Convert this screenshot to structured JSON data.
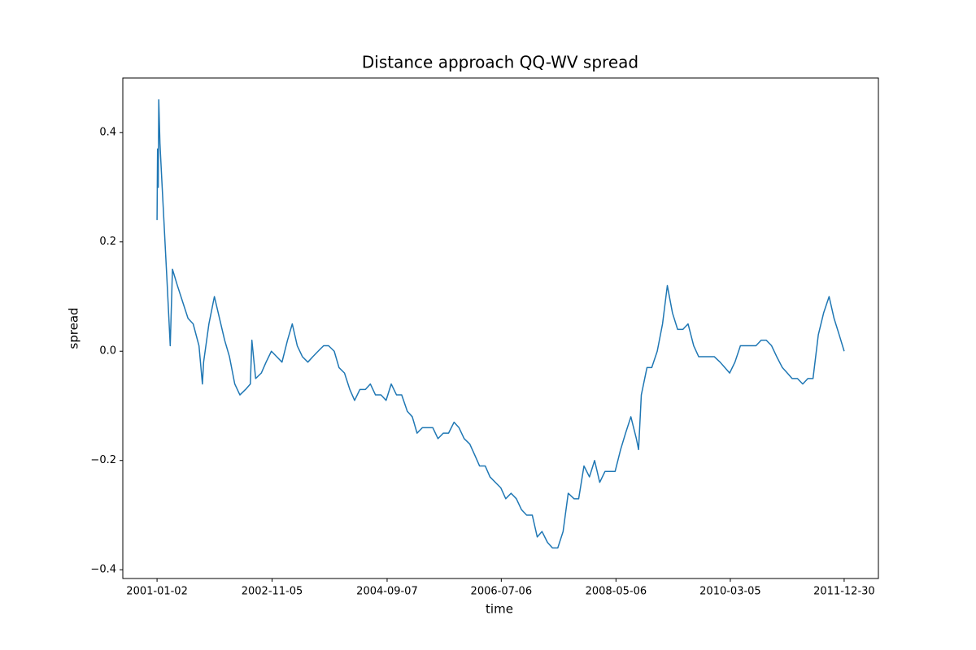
{
  "chart_data": {
    "type": "line",
    "title": "Distance approach QQ-WV spread",
    "x_label": "time",
    "y_label": "spread",
    "color": "#1f77b4",
    "x": [
      "2001-01-02",
      "2001-01-05",
      "2001-01-09",
      "2001-01-12",
      "2001-01-19",
      "2001-02-01",
      "2001-03-01",
      "2001-03-20",
      "2001-04-02",
      "2001-05-01",
      "2001-06-01",
      "2001-07-02",
      "2001-08-01",
      "2001-09-04",
      "2001-09-24",
      "2001-10-01",
      "2001-11-01",
      "2001-12-03",
      "2002-01-02",
      "2002-02-01",
      "2002-03-01",
      "2002-04-01",
      "2002-05-01",
      "2002-06-03",
      "2002-07-01",
      "2002-07-10",
      "2002-08-01",
      "2002-09-03",
      "2002-10-01",
      "2002-11-01",
      "2002-12-02",
      "2003-01-02",
      "2003-02-03",
      "2003-03-03",
      "2003-04-01",
      "2003-05-01",
      "2003-06-02",
      "2003-07-01",
      "2003-08-01",
      "2003-09-02",
      "2003-10-01",
      "2003-11-03",
      "2003-12-01",
      "2004-01-02",
      "2004-02-02",
      "2004-03-01",
      "2004-04-01",
      "2004-05-03",
      "2004-06-01",
      "2004-07-01",
      "2004-08-02",
      "2004-09-01",
      "2004-10-01",
      "2004-11-01",
      "2004-12-01",
      "2005-01-03",
      "2005-02-01",
      "2005-03-01",
      "2005-04-01",
      "2005-05-02",
      "2005-06-01",
      "2005-07-01",
      "2005-08-01",
      "2005-09-01",
      "2005-10-03",
      "2005-11-01",
      "2005-12-01",
      "2006-01-03",
      "2006-02-01",
      "2006-03-01",
      "2006-04-03",
      "2006-05-01",
      "2006-06-01",
      "2006-07-03",
      "2006-08-01",
      "2006-09-01",
      "2006-10-02",
      "2006-11-01",
      "2006-12-01",
      "2007-01-03",
      "2007-02-01",
      "2007-03-01",
      "2007-04-02",
      "2007-05-01",
      "2007-06-01",
      "2007-07-02",
      "2007-08-01",
      "2007-09-04",
      "2007-10-01",
      "2007-11-01",
      "2007-12-03",
      "2008-01-02",
      "2008-02-01",
      "2008-03-03",
      "2008-04-01",
      "2008-05-01",
      "2008-06-02",
      "2008-07-01",
      "2008-08-01",
      "2008-09-02",
      "2008-09-15",
      "2008-10-01",
      "2008-11-03",
      "2008-12-01",
      "2009-01-02",
      "2009-02-02",
      "2009-03-02",
      "2009-04-01",
      "2009-05-01",
      "2009-06-01",
      "2009-07-01",
      "2009-08-03",
      "2009-09-01",
      "2009-10-01",
      "2009-11-02",
      "2009-12-01",
      "2010-01-04",
      "2010-02-01",
      "2010-03-01",
      "2010-04-01",
      "2010-05-03",
      "2010-06-01",
      "2010-07-01",
      "2010-08-02",
      "2010-09-01",
      "2010-10-01",
      "2010-11-01",
      "2010-12-01",
      "2011-01-03",
      "2011-02-01",
      "2011-03-01",
      "2011-04-01",
      "2011-05-02",
      "2011-06-01",
      "2011-07-01",
      "2011-08-01",
      "2011-09-01",
      "2011-10-03",
      "2011-11-01",
      "2011-12-01",
      "2011-12-30"
    ],
    "values": [
      0.24,
      0.37,
      0.3,
      0.46,
      0.38,
      0.3,
      0.13,
      0.01,
      0.15,
      0.12,
      0.09,
      0.06,
      0.05,
      0.01,
      -0.06,
      -0.02,
      0.05,
      0.1,
      0.06,
      0.02,
      -0.01,
      -0.06,
      -0.08,
      -0.07,
      -0.06,
      0.02,
      -0.05,
      -0.04,
      -0.02,
      0.0,
      -0.01,
      -0.02,
      0.02,
      0.05,
      0.01,
      -0.01,
      -0.02,
      -0.01,
      0.0,
      0.01,
      0.01,
      0.0,
      -0.03,
      -0.04,
      -0.07,
      -0.09,
      -0.07,
      -0.07,
      -0.06,
      -0.08,
      -0.08,
      -0.09,
      -0.06,
      -0.08,
      -0.08,
      -0.11,
      -0.12,
      -0.15,
      -0.14,
      -0.14,
      -0.14,
      -0.16,
      -0.15,
      -0.15,
      -0.13,
      -0.14,
      -0.16,
      -0.17,
      -0.19,
      -0.21,
      -0.21,
      -0.23,
      -0.24,
      -0.25,
      -0.27,
      -0.26,
      -0.27,
      -0.29,
      -0.3,
      -0.3,
      -0.34,
      -0.33,
      -0.35,
      -0.36,
      -0.36,
      -0.33,
      -0.26,
      -0.27,
      -0.27,
      -0.21,
      -0.23,
      -0.2,
      -0.24,
      -0.22,
      -0.22,
      -0.22,
      -0.18,
      -0.15,
      -0.12,
      -0.16,
      -0.18,
      -0.08,
      -0.03,
      -0.03,
      0.0,
      0.05,
      0.12,
      0.07,
      0.04,
      0.04,
      0.05,
      0.01,
      -0.01,
      -0.01,
      -0.01,
      -0.01,
      -0.02,
      -0.03,
      -0.04,
      -0.02,
      0.01,
      0.01,
      0.01,
      0.01,
      0.02,
      0.02,
      0.01,
      -0.01,
      -0.03,
      -0.04,
      -0.05,
      -0.05,
      -0.06,
      -0.05,
      -0.05,
      0.03,
      0.07,
      0.1,
      0.06,
      0.03,
      0.0
    ],
    "xlim": [
      "2000-06-16",
      "2012-07-17"
    ],
    "xticks": [
      "2001-01-02",
      "2002-11-05",
      "2004-09-07",
      "2006-07-06",
      "2008-05-06",
      "2010-03-05",
      "2011-12-30"
    ],
    "ylim": [
      -0.416,
      0.5
    ],
    "yticks": [
      {
        "value": -0.4,
        "label": "−0.4"
      },
      {
        "value": -0.2,
        "label": "−0.2"
      },
      {
        "value": 0,
        "label": "0.0"
      },
      0.2,
      0.4
    ],
    "grid": false
  }
}
